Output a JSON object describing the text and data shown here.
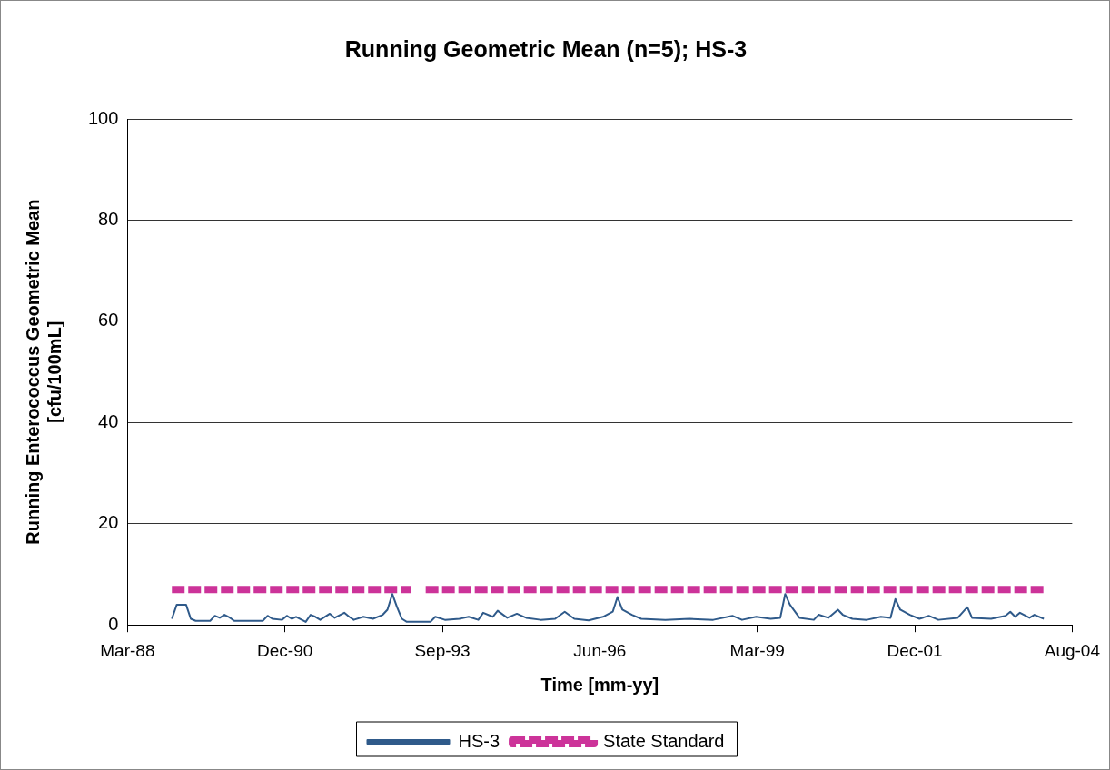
{
  "chart_data": {
    "type": "line",
    "title": "Running Geometric Mean (n=5); HS-3",
    "xlabel": "Time [mm-yy]",
    "ylabel": "Running Enterococcus Geometric Mean\n[cfu/100mL]",
    "xlim": [
      "1988-03-25",
      "2004-08-28"
    ],
    "xticks": [
      {
        "value": "1988-03-25",
        "label": "Mar-88"
      },
      {
        "value": "1990-12-20",
        "label": "Dec-90"
      },
      {
        "value": "1993-09-15",
        "label": "Sep-93"
      },
      {
        "value": "1996-06-11",
        "label": "Jun-96"
      },
      {
        "value": "1999-03-08",
        "label": "Mar-99"
      },
      {
        "value": "2001-12-02",
        "label": "Dec-01"
      },
      {
        "value": "2004-08-28",
        "label": "Aug-04"
      }
    ],
    "ylim": [
      0,
      100
    ],
    "yticks": [
      0,
      20,
      40,
      60,
      80,
      100
    ],
    "grid": "y",
    "legend": "bottom",
    "series": [
      {
        "name": "HS-3",
        "color": "#2f5a8a",
        "line_style": "solid",
        "x": [
          "1989-01",
          "1989-02",
          "1989-04",
          "1989-05",
          "1989-06",
          "1989-09",
          "1989-10",
          "1989-11",
          "1989-12",
          "1990-01",
          "1990-02",
          "1990-08",
          "1990-09",
          "1990-10",
          "1990-12",
          "1991-01",
          "1991-02",
          "1991-03",
          "1991-05",
          "1991-06",
          "1991-07",
          "1991-08",
          "1991-10",
          "1991-11",
          "1992-01",
          "1992-02",
          "1992-03",
          "1992-05",
          "1992-07",
          "1992-09",
          "1992-10",
          "1992-11",
          "1992-12",
          "1993-01",
          "1993-02",
          "1993-07",
          "1993-08",
          "1993-10",
          "1994-01",
          "1994-03",
          "1994-05",
          "1994-06",
          "1994-08",
          "1994-09",
          "1994-11",
          "1995-01",
          "1995-03",
          "1995-06",
          "1995-09",
          "1995-11",
          "1996-01",
          "1996-04",
          "1996-07",
          "1996-09",
          "1996-10",
          "1996-11",
          "1997-01",
          "1997-03",
          "1997-08",
          "1998-01",
          "1998-06",
          "1998-10",
          "1998-12",
          "1999-03",
          "1999-06",
          "1999-08",
          "1999-09",
          "1999-10",
          "1999-12",
          "2000-03",
          "2000-04",
          "2000-06",
          "2000-08",
          "2000-09",
          "2000-11",
          "2001-02",
          "2001-05",
          "2001-07",
          "2001-08",
          "2001-09",
          "2001-11",
          "2002-01",
          "2002-03",
          "2002-05",
          "2002-09",
          "2002-11",
          "2002-12",
          "2003-04",
          "2003-07",
          "2003-08",
          "2003-09",
          "2003-10",
          "2003-12",
          "2004-01",
          "2004-03"
        ],
        "values": [
          1.2,
          4.0,
          4.0,
          1.2,
          0.8,
          0.8,
          1.8,
          1.4,
          2.0,
          1.5,
          0.8,
          0.8,
          1.8,
          1.2,
          1.0,
          1.8,
          1.2,
          1.6,
          0.6,
          2.0,
          1.6,
          1.0,
          2.2,
          1.4,
          2.4,
          1.6,
          1.0,
          1.6,
          1.2,
          2.0,
          3.0,
          6.1,
          3.5,
          1.2,
          0.6,
          0.6,
          1.6,
          1.0,
          1.2,
          1.6,
          1.0,
          2.4,
          1.6,
          2.8,
          1.4,
          2.2,
          1.4,
          1.0,
          1.2,
          2.6,
          1.2,
          0.9,
          1.6,
          2.6,
          5.5,
          3.0,
          2.0,
          1.2,
          1.0,
          1.2,
          1.0,
          1.8,
          1.0,
          1.6,
          1.2,
          1.4,
          6.1,
          4.0,
          1.4,
          1.0,
          2.0,
          1.4,
          3.0,
          2.0,
          1.2,
          1.0,
          1.6,
          1.4,
          5.1,
          3.0,
          2.0,
          1.2,
          1.8,
          1.0,
          1.4,
          3.5,
          1.4,
          1.2,
          1.8,
          2.6,
          1.6,
          2.4,
          1.4,
          2.0,
          1.2
        ]
      },
      {
        "name": "State Standard",
        "color": "#cc3399",
        "line_style": "dashed",
        "x": [
          "1989-01",
          "1993-03",
          "1993-04",
          "1993-06",
          "2004-03"
        ],
        "values": [
          7,
          7,
          null,
          7,
          7
        ]
      }
    ]
  }
}
